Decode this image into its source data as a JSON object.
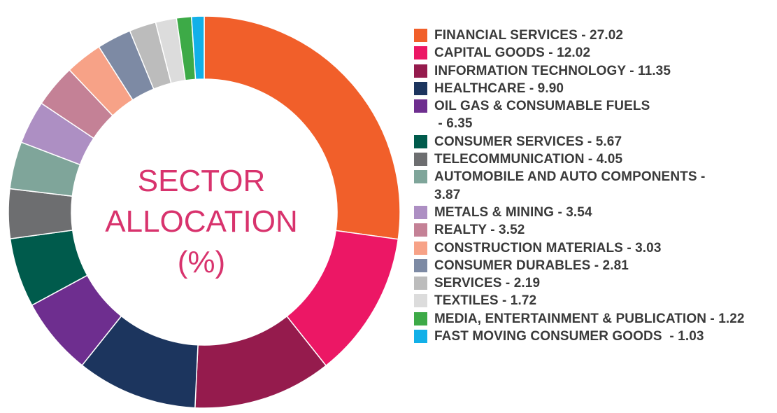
{
  "center_title": {
    "line1": "SECTOR",
    "line2": "ALLOCATION",
    "line3": "(%)"
  },
  "chart_data": {
    "type": "pie",
    "variant": "donut",
    "title": "SECTOR ALLOCATION (%)",
    "legend_position": "right",
    "categories": [
      "FINANCIAL SERVICES",
      "CAPITAL GOODS",
      "INFORMATION TECHNOLOGY",
      "HEALTHCARE",
      "OIL GAS & CONSUMABLE FUELS",
      "CONSUMER SERVICES",
      "TELECOMMUNICATION",
      "AUTOMOBILE AND AUTO COMPONENTS",
      "METALS & MINING",
      "REALTY",
      "CONSTRUCTION MATERIALS",
      "CONSUMER DURABLES",
      "SERVICES",
      "TEXTILES",
      "MEDIA, ENTERTAINMENT & PUBLICATION",
      "FAST MOVING CONSUMER GOODS"
    ],
    "values": [
      27.02,
      12.02,
      11.35,
      9.9,
      6.35,
      5.67,
      4.05,
      3.87,
      3.54,
      3.52,
      3.03,
      2.81,
      2.19,
      1.72,
      1.22,
      1.03
    ],
    "colors": [
      "#f15f2a",
      "#ec1765",
      "#951b4d",
      "#1c355e",
      "#6e2e8f",
      "#005b4c",
      "#6d6e70",
      "#7fa59a",
      "#ad8fc3",
      "#c48196",
      "#f7a287",
      "#7d8aa4",
      "#bcbcbc",
      "#dcdcdc",
      "#3daa47",
      "#12b0e8"
    ]
  },
  "legend": [
    {
      "text": "FINANCIAL SERVICES - 27.02"
    },
    {
      "text": "CAPITAL GOODS - 12.02"
    },
    {
      "text": "INFORMATION TECHNOLOGY - 11.35"
    },
    {
      "text": "HEALTHCARE - 9.90"
    },
    {
      "text": "OIL GAS & CONSUMABLE FUELS\n - 6.35"
    },
    {
      "text": "CONSUMER SERVICES - 5.67"
    },
    {
      "text": "TELECOMMUNICATION - 4.05"
    },
    {
      "text": "AUTOMOBILE AND AUTO COMPONENTS -\n3.87"
    },
    {
      "text": "METALS & MINING - 3.54"
    },
    {
      "text": "REALTY - 3.52"
    },
    {
      "text": "CONSTRUCTION MATERIALS - 3.03"
    },
    {
      "text": "CONSUMER DURABLES - 2.81"
    },
    {
      "text": "SERVICES - 2.19"
    },
    {
      "text": "TEXTILES - 1.72"
    },
    {
      "text": "MEDIA, ENTERTAINMENT & PUBLICATION - 1.22"
    },
    {
      "text": "FAST MOVING CONSUMER GOODS  - 1.03"
    }
  ]
}
